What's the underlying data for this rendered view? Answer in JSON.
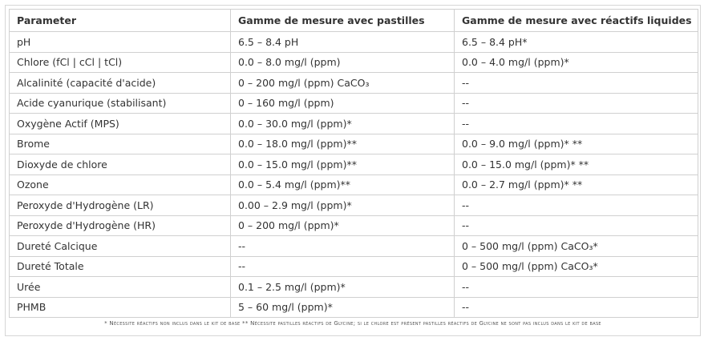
{
  "table": {
    "header": [
      "Parameter",
      "Gamme de mesure avec pastilles",
      "Gamme de mesure avec réactifs liquides"
    ],
    "rows": [
      [
        "pH",
        "6.5 – 8.4 pH",
        "6.5 – 8.4 pH*"
      ],
      [
        "Chlore (fCl | cCl | tCl)",
        "0.0 – 8.0 mg/l (ppm)",
        "0.0 – 4.0 mg/l (ppm)*"
      ],
      [
        "Alcalinité (capacité d'acide)",
        "0 – 200 mg/l (ppm) CaCO₃",
        "--"
      ],
      [
        "Acide cyanurique (stabilisant)",
        "0 – 160 mg/l (ppm)",
        "--"
      ],
      [
        "Oxygène Actif (MPS)",
        "0.0 – 30.0 mg/l (ppm)*",
        "--"
      ],
      [
        "Brome",
        "0.0 – 18.0 mg/l (ppm)**",
        "0.0 – 9.0 mg/l (ppm)* **"
      ],
      [
        "Dioxyde de chlore",
        "0.0 – 15.0 mg/l (ppm)**",
        "0.0 – 15.0 mg/l (ppm)* **"
      ],
      [
        "Ozone",
        "0.0 – 5.4 mg/l (ppm)**",
        "0.0 – 2.7 mg/l (ppm)* **"
      ],
      [
        "Peroxyde d'Hydrogène (LR)",
        "0.00 – 2.9 mg/l (ppm)*",
        "--"
      ],
      [
        "Peroxyde d'Hydrogène (HR)",
        "0 – 200 mg/l (ppm)*",
        "--"
      ],
      [
        "Dureté Calcique",
        "--",
        "0 – 500 mg/l (ppm) CaCO₃*"
      ],
      [
        "Dureté Totale",
        "--",
        "0 – 500 mg/l (ppm) CaCO₃*"
      ],
      [
        "Urée",
        "0.1 – 2.5 mg/l (ppm)*",
        "--"
      ],
      [
        "PHMB",
        "5 – 60 mg/l (ppm)*",
        "--"
      ]
    ],
    "note": "* Nécessite réactifs non inclus dans le kit de base ** Nécessite pastilles réactifs de Glycine; si le chlore est présent pastilles réactifs de Glycine ne sont pas inclus dans le kit de base"
  }
}
